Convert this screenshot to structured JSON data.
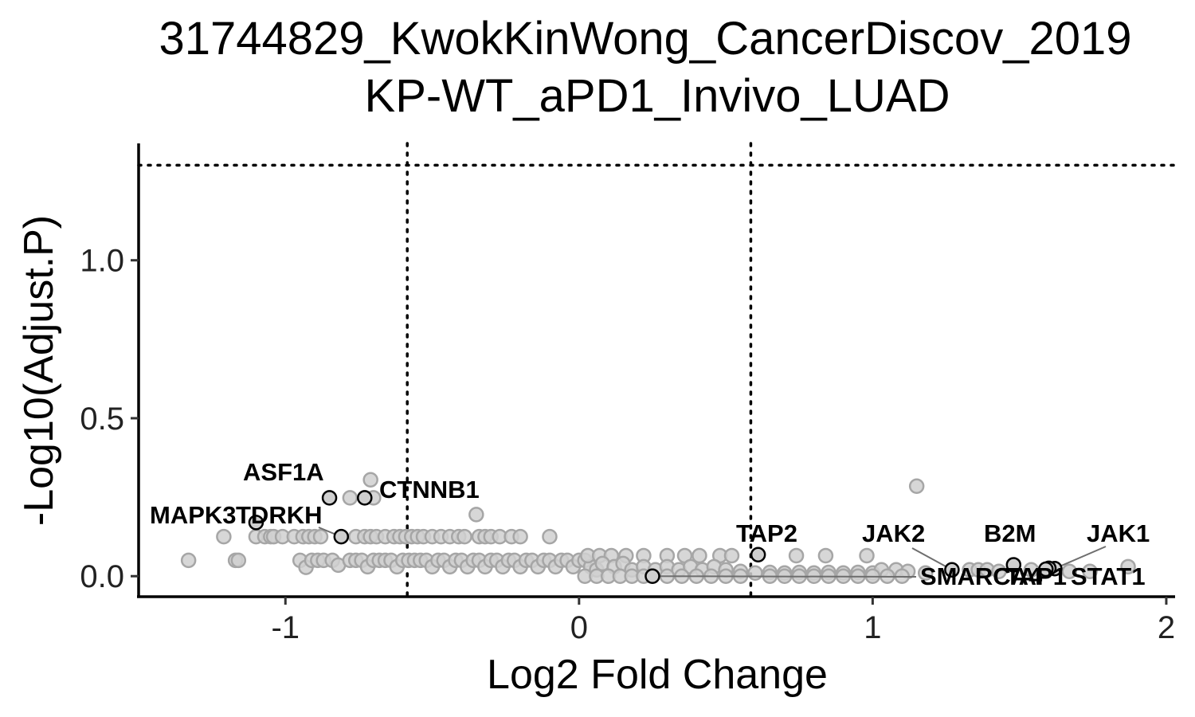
{
  "chart_data": {
    "type": "scatter",
    "title": "31744829_KwokKinWong_CancerDiscov_2019",
    "subtitle": "KP-WT_aPD1_Invivo_LUAD",
    "xlabel": "Log2 Fold Change",
    "ylabel": "-Log10(Adjust.P)",
    "xlim": [
      -1.5,
      2.03
    ],
    "ylim": [
      -0.065,
      1.37
    ],
    "x_ticks": [
      -1,
      0,
      1,
      2
    ],
    "x_tick_labels": [
      "-1",
      "0",
      "1",
      "2"
    ],
    "y_ticks": [
      0.0,
      0.5,
      1.0
    ],
    "y_tick_labels": [
      "0.0",
      "0.5",
      "1.0"
    ],
    "thresholds": {
      "x": [
        -0.585,
        0.585
      ],
      "y": 1.301
    },
    "grid": false,
    "colors": {
      "background_points": "#d0d0d0",
      "background_outline": "#a6a6a6",
      "highlight_outline": "#000000",
      "leader_line": "#6e6e6e"
    },
    "highlighted_genes": [
      {
        "gene": "ASF1A",
        "x": -0.85,
        "y": 0.248
      },
      {
        "gene": "MAPK3",
        "x": -1.1,
        "y": 0.17
      },
      {
        "gene": "TDRKH",
        "x": -0.81,
        "y": 0.125
      },
      {
        "gene": "CTNNB1",
        "x": -0.73,
        "y": 0.248
      },
      {
        "gene": "TAP2",
        "x": 0.61,
        "y": 0.068
      },
      {
        "gene": "JAK2",
        "x": 1.27,
        "y": 0.02
      },
      {
        "gene": "B2M",
        "x": 1.48,
        "y": 0.036
      },
      {
        "gene": "JAK1",
        "x": 1.62,
        "y": 0.024
      },
      {
        "gene": "SMARCA4",
        "x": 0.25,
        "y": 0.0
      },
      {
        "gene": "TAP1",
        "x": 1.6,
        "y": 0.025
      },
      {
        "gene": "STAT1",
        "x": 1.59,
        "y": 0.022
      }
    ],
    "annotations": [
      {
        "text": "ASF1A",
        "gene": "ASF1A"
      },
      {
        "text": "MAPK3",
        "gene": "MAPK3"
      },
      {
        "text": "TDRKH",
        "gene": "TDRKH"
      },
      {
        "text": "CTNNB1",
        "gene": "CTNNB1"
      },
      {
        "text": "TAP2",
        "gene": "TAP2"
      },
      {
        "text": "JAK2",
        "gene": "JAK2"
      },
      {
        "text": "B2M",
        "gene": "B2M"
      },
      {
        "text": "JAK1",
        "gene": "JAK1"
      },
      {
        "text": "SMARCA4",
        "gene": "SMARCA4"
      },
      {
        "text": "TAP1",
        "gene": "TAP1"
      },
      {
        "text": "STAT1",
        "gene": "STAT1"
      }
    ],
    "background_points": [
      [
        -1.33,
        0.05
      ],
      [
        -1.21,
        0.125
      ],
      [
        -1.17,
        0.05
      ],
      [
        -1.16,
        0.05
      ],
      [
        -1.1,
        0.125
      ],
      [
        -1.07,
        0.125
      ],
      [
        -1.05,
        0.125
      ],
      [
        -1.04,
        0.125
      ],
      [
        -1.01,
        0.125
      ],
      [
        -0.97,
        0.125
      ],
      [
        -0.94,
        0.125
      ],
      [
        -0.92,
        0.125
      ],
      [
        -0.9,
        0.125
      ],
      [
        -0.88,
        0.125
      ],
      [
        -0.95,
        0.05
      ],
      [
        -0.93,
        0.028
      ],
      [
        -0.91,
        0.05
      ],
      [
        -0.89,
        0.05
      ],
      [
        -0.87,
        0.05
      ],
      [
        -0.84,
        0.05
      ],
      [
        -0.82,
        0.035
      ],
      [
        -0.78,
        0.248
      ],
      [
        -0.71,
        0.305
      ],
      [
        -0.7,
        0.248
      ],
      [
        -0.78,
        0.05
      ],
      [
        -0.76,
        0.05
      ],
      [
        -0.74,
        0.05
      ],
      [
        -0.72,
        0.03
      ],
      [
        -0.7,
        0.05
      ],
      [
        -0.68,
        0.05
      ],
      [
        -0.66,
        0.05
      ],
      [
        -0.64,
        0.05
      ],
      [
        -0.62,
        0.03
      ],
      [
        -0.6,
        0.05
      ],
      [
        -0.58,
        0.05
      ],
      [
        -0.76,
        0.125
      ],
      [
        -0.73,
        0.125
      ],
      [
        -0.71,
        0.125
      ],
      [
        -0.69,
        0.125
      ],
      [
        -0.66,
        0.125
      ],
      [
        -0.63,
        0.125
      ],
      [
        -0.61,
        0.125
      ],
      [
        -0.59,
        0.125
      ],
      [
        -0.57,
        0.125
      ],
      [
        -0.55,
        0.125
      ],
      [
        -0.53,
        0.125
      ],
      [
        -0.5,
        0.125
      ],
      [
        -0.47,
        0.125
      ],
      [
        -0.44,
        0.125
      ],
      [
        -0.41,
        0.125
      ],
      [
        -0.39,
        0.125
      ],
      [
        -0.34,
        0.125
      ],
      [
        -0.32,
        0.125
      ],
      [
        -0.3,
        0.125
      ],
      [
        -0.27,
        0.125
      ],
      [
        -0.23,
        0.125
      ],
      [
        -0.2,
        0.125
      ],
      [
        -0.1,
        0.125
      ],
      [
        -0.35,
        0.195
      ],
      [
        -0.56,
        0.05
      ],
      [
        -0.54,
        0.05
      ],
      [
        -0.52,
        0.05
      ],
      [
        -0.5,
        0.03
      ],
      [
        -0.48,
        0.05
      ],
      [
        -0.46,
        0.05
      ],
      [
        -0.44,
        0.03
      ],
      [
        -0.42,
        0.05
      ],
      [
        -0.4,
        0.05
      ],
      [
        -0.38,
        0.03
      ],
      [
        -0.36,
        0.05
      ],
      [
        -0.34,
        0.05
      ],
      [
        -0.32,
        0.03
      ],
      [
        -0.3,
        0.05
      ],
      [
        -0.28,
        0.05
      ],
      [
        -0.26,
        0.03
      ],
      [
        -0.24,
        0.05
      ],
      [
        -0.22,
        0.05
      ],
      [
        -0.2,
        0.03
      ],
      [
        -0.18,
        0.05
      ],
      [
        -0.16,
        0.05
      ],
      [
        -0.14,
        0.03
      ],
      [
        -0.12,
        0.05
      ],
      [
        -0.1,
        0.05
      ],
      [
        -0.08,
        0.03
      ],
      [
        -0.06,
        0.05
      ],
      [
        -0.04,
        0.05
      ],
      [
        -0.02,
        0.03
      ],
      [
        0.0,
        0.05
      ],
      [
        0.02,
        0.05
      ],
      [
        0.04,
        0.03
      ],
      [
        0.06,
        0.02
      ],
      [
        0.03,
        0.065
      ],
      [
        0.07,
        0.065
      ],
      [
        0.11,
        0.065
      ],
      [
        0.16,
        0.065
      ],
      [
        0.22,
        0.065
      ],
      [
        0.3,
        0.065
      ],
      [
        0.36,
        0.065
      ],
      [
        0.41,
        0.065
      ],
      [
        0.48,
        0.065
      ],
      [
        0.52,
        0.065
      ],
      [
        0.74,
        0.065
      ],
      [
        0.84,
        0.065
      ],
      [
        0.98,
        0.065
      ],
      [
        1.15,
        0.285
      ],
      [
        0.08,
        0.04
      ],
      [
        0.12,
        0.03
      ],
      [
        0.15,
        0.04
      ],
      [
        0.18,
        0.02
      ],
      [
        0.22,
        0.03
      ],
      [
        0.26,
        0.02
      ],
      [
        0.3,
        0.03
      ],
      [
        0.34,
        0.02
      ],
      [
        0.38,
        0.03
      ],
      [
        0.42,
        0.02
      ],
      [
        0.46,
        0.03
      ],
      [
        0.5,
        0.02
      ],
      [
        0.55,
        0.015
      ],
      [
        0.6,
        0.01
      ],
      [
        0.65,
        0.012
      ],
      [
        0.7,
        0.01
      ],
      [
        0.75,
        0.012
      ],
      [
        0.8,
        0.01
      ],
      [
        0.85,
        0.012
      ],
      [
        0.9,
        0.01
      ],
      [
        0.95,
        0.012
      ],
      [
        1.0,
        0.01
      ],
      [
        1.03,
        0.02
      ],
      [
        1.08,
        0.02
      ],
      [
        1.12,
        0.015
      ],
      [
        1.18,
        0.01
      ],
      [
        1.33,
        0.02
      ],
      [
        1.36,
        0.02
      ],
      [
        1.39,
        0.02
      ],
      [
        1.43,
        0.015
      ],
      [
        1.54,
        0.02
      ],
      [
        1.67,
        0.015
      ],
      [
        1.74,
        0.015
      ],
      [
        1.87,
        0.03
      ],
      [
        0.02,
        0.0
      ],
      [
        0.06,
        0.0
      ],
      [
        0.1,
        0.0
      ],
      [
        0.14,
        0.0
      ],
      [
        0.18,
        0.0
      ],
      [
        0.22,
        0.0
      ],
      [
        0.3,
        0.0
      ],
      [
        0.35,
        0.0
      ],
      [
        0.4,
        0.0
      ],
      [
        0.45,
        0.0
      ],
      [
        0.5,
        0.0
      ],
      [
        0.55,
        0.0
      ],
      [
        0.65,
        0.0
      ],
      [
        0.7,
        0.0
      ],
      [
        0.75,
        0.0
      ],
      [
        0.8,
        0.0
      ],
      [
        0.85,
        0.0
      ],
      [
        0.9,
        0.0
      ],
      [
        0.95,
        0.0
      ],
      [
        1.0,
        0.0
      ],
      [
        1.05,
        0.0
      ],
      [
        1.1,
        0.0
      ]
    ]
  }
}
